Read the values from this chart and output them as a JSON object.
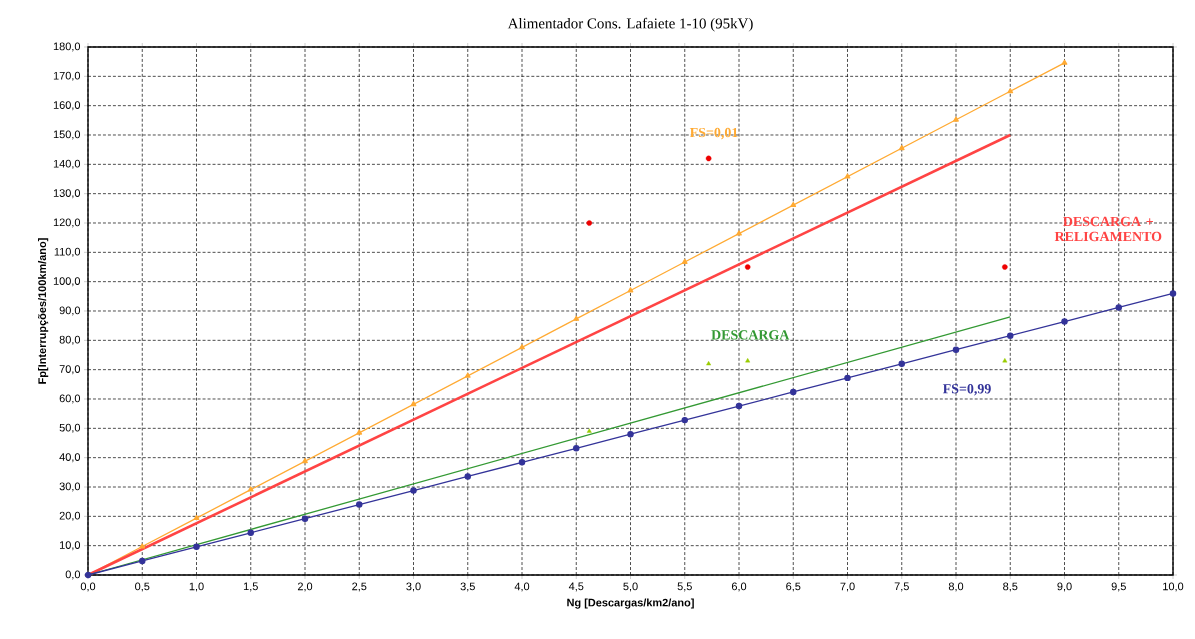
{
  "chart_data": {
    "type": "line",
    "title": "Alimentador  Cons. Lafaiete 1-10 (95kV)",
    "xlabel": "Ng [Descargas/km2/ano]",
    "ylabel": "Fp[Interrupções/100km/ano]",
    "xlim": [
      0,
      10
    ],
    "ylim": [
      0,
      180
    ],
    "xticks": [
      {
        "value": 0,
        "label": "0,0"
      },
      {
        "value": 0.5,
        "label": "0,5"
      },
      {
        "value": 1,
        "label": "1,0"
      },
      {
        "value": 1.5,
        "label": "1,5"
      },
      {
        "value": 2,
        "label": "2,0"
      },
      {
        "value": 2.5,
        "label": "2,5"
      },
      {
        "value": 3,
        "label": "3,0"
      },
      {
        "value": 3.5,
        "label": "3,5"
      },
      {
        "value": 4,
        "label": "4,0"
      },
      {
        "value": 4.5,
        "label": "4,5"
      },
      {
        "value": 5,
        "label": "5,0"
      },
      {
        "value": 5.5,
        "label": "5,5"
      },
      {
        "value": 6,
        "label": "6,0"
      },
      {
        "value": 6.5,
        "label": "6,5"
      },
      {
        "value": 7,
        "label": "7,0"
      },
      {
        "value": 7.5,
        "label": "7,5"
      },
      {
        "value": 8,
        "label": "8,0"
      },
      {
        "value": 8.5,
        "label": "8,5"
      },
      {
        "value": 9,
        "label": "9,0"
      },
      {
        "value": 9.5,
        "label": "9,5"
      },
      {
        "value": 10,
        "label": "10,0"
      }
    ],
    "yticks": [
      {
        "value": 0,
        "label": "0,0"
      },
      {
        "value": 10,
        "label": "10,0"
      },
      {
        "value": 20,
        "label": "20,0"
      },
      {
        "value": 30,
        "label": "30,0"
      },
      {
        "value": 40,
        "label": "40,0"
      },
      {
        "value": 50,
        "label": "50,0"
      },
      {
        "value": 60,
        "label": "60,0"
      },
      {
        "value": 70,
        "label": "70,0"
      },
      {
        "value": 80,
        "label": "80,0"
      },
      {
        "value": 90,
        "label": "90,0"
      },
      {
        "value": 100,
        "label": "100,0"
      },
      {
        "value": 110,
        "label": "110,0"
      },
      {
        "value": 120,
        "label": "120,0"
      },
      {
        "value": 130,
        "label": "130,0"
      },
      {
        "value": 140,
        "label": "140,0"
      },
      {
        "value": 150,
        "label": "150,0"
      },
      {
        "value": 160,
        "label": "160,0"
      },
      {
        "value": 170,
        "label": "170,0"
      },
      {
        "value": 180,
        "label": "180,0"
      }
    ],
    "grid": true,
    "line_style": "solid",
    "series": [
      {
        "name": "FS=0,01",
        "color": "#ffaa33",
        "type": "line",
        "marker": "triangle",
        "x": [
          0,
          0.5,
          1,
          1.5,
          2,
          2.5,
          3,
          3.5,
          4,
          4.5,
          5,
          5.5,
          6,
          6.5,
          7,
          7.5,
          8,
          8.5,
          9
        ],
        "values": [
          0,
          9.7,
          19.4,
          29.1,
          38.8,
          48.5,
          58.2,
          67.9,
          77.6,
          87.3,
          97,
          106.7,
          116.4,
          126.1,
          135.8,
          145.5,
          155.2,
          164.9,
          174.6
        ]
      },
      {
        "name": "DESCARGA + RELIGAMENTO",
        "color": "#ff4444",
        "type": "line",
        "marker": "none",
        "x": [
          0,
          8.5
        ],
        "values": [
          0,
          150
        ]
      },
      {
        "color": "#ee0000",
        "type": "scatter",
        "marker": "circle",
        "x": [
          4.62,
          5.72,
          6.08,
          8.45
        ],
        "values": [
          120,
          142,
          105,
          105
        ]
      },
      {
        "name": "DESCARGA",
        "color": "#339933",
        "type": "line",
        "marker": "none",
        "x": [
          0,
          8.5
        ],
        "values": [
          0,
          88
        ]
      },
      {
        "color": "#99cc00",
        "type": "scatter",
        "marker": "triangle",
        "x": [
          4.62,
          5.72,
          6.08,
          8.45
        ],
        "values": [
          49,
          72,
          73,
          73
        ]
      },
      {
        "name": "FS=0,99",
        "color": "#333399",
        "type": "line",
        "marker": "circle",
        "x": [
          0,
          0.5,
          1,
          1.5,
          2,
          2.5,
          3,
          3.5,
          4,
          4.5,
          5,
          5.5,
          6,
          6.5,
          7,
          7.5,
          8,
          8.5,
          9,
          9.5,
          10
        ],
        "values": [
          0,
          4.8,
          9.6,
          14.4,
          19.2,
          24,
          28.8,
          33.6,
          38.4,
          43.2,
          48,
          52.8,
          57.6,
          62.4,
          67.2,
          72,
          76.8,
          81.6,
          86.4,
          91.2,
          96
        ]
      }
    ]
  }
}
